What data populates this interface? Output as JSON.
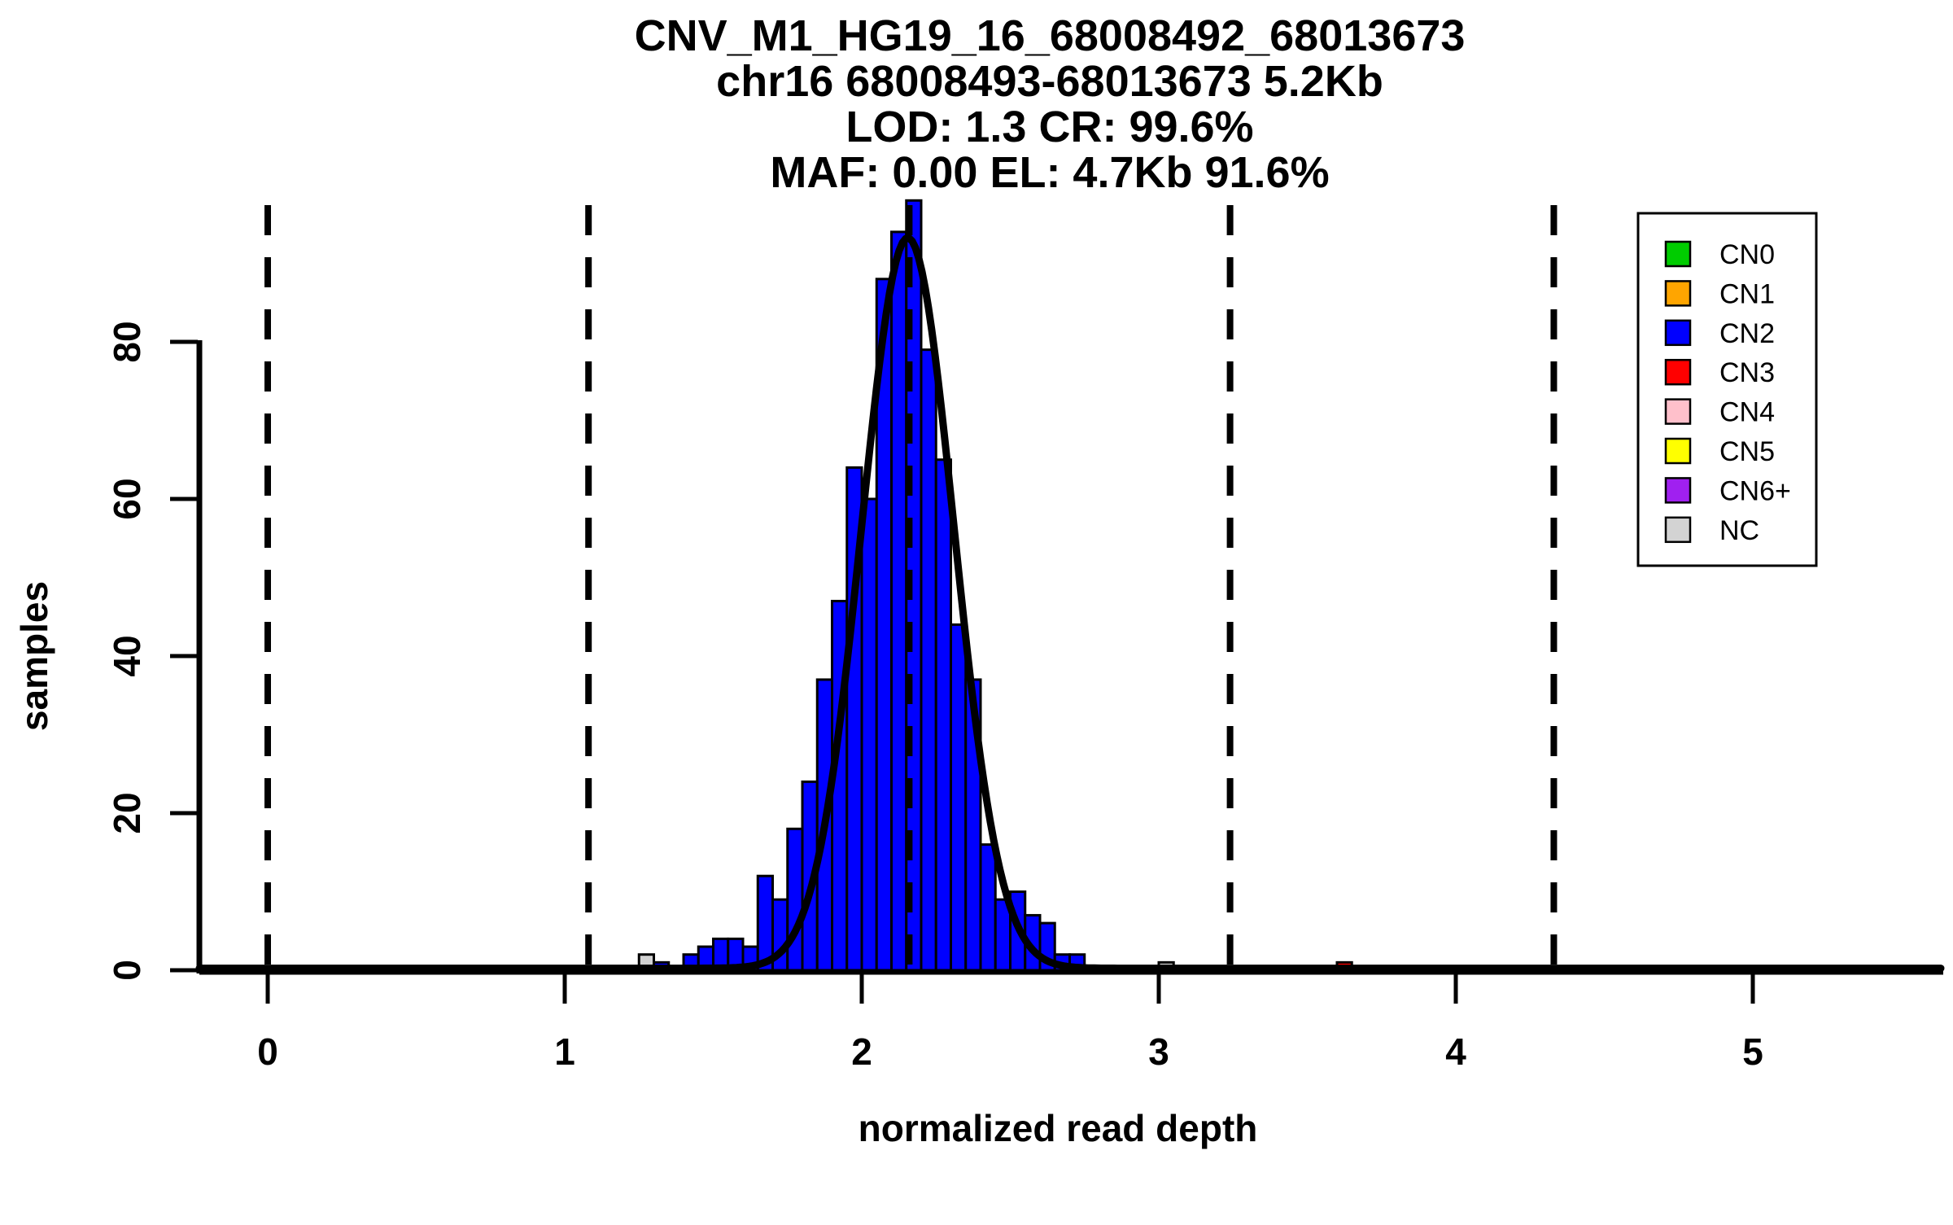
{
  "title": {
    "line1": "CNV_M1_HG19_16_68008492_68013673",
    "line2": "chr16 68008493-68013673 5.2Kb",
    "line3": "LOD: 1.3 CR: 99.6%",
    "line4": "MAF: 0.00 EL: 4.7Kb 91.6%"
  },
  "axes": {
    "x_label": "normalized read depth",
    "y_label": "samples",
    "x_tick_labels": [
      "0",
      "1",
      "2",
      "3",
      "4",
      "5"
    ],
    "x_tick_values": [
      0,
      1,
      2,
      3,
      4,
      5
    ],
    "y_tick_labels": [
      "0",
      "20",
      "40",
      "60",
      "80"
    ],
    "y_tick_values": [
      0,
      20,
      40,
      60,
      80
    ]
  },
  "legend": {
    "items": [
      {
        "label": "CN0",
        "color": "#00CC00"
      },
      {
        "label": "CN1",
        "color": "#FFA500"
      },
      {
        "label": "CN2",
        "color": "#0000FF"
      },
      {
        "label": "CN3",
        "color": "#FF0000"
      },
      {
        "label": "CN4",
        "color": "#FFC0CB"
      },
      {
        "label": "CN5",
        "color": "#FFFF00"
      },
      {
        "label": "CN6+",
        "color": "#A020F0"
      },
      {
        "label": "NC",
        "color": "#D3D3D3"
      }
    ]
  },
  "chart_data": {
    "type": "bar",
    "subtype": "histogram-with-density-fit",
    "title": "CNV_M1_HG19_16_68008492_68013673 / chr16 68008493-68013673 5.2Kb / LOD: 1.3 CR: 99.6% / MAF: 0.00 EL: 4.7Kb 91.6%",
    "xlabel": "normalized read depth",
    "ylabel": "samples",
    "xlim": [
      -0.23,
      5.64
    ],
    "ylim": [
      0,
      98.5
    ],
    "grid": false,
    "legend_position": "top-right",
    "bin_width": 0.05,
    "bars": [
      {
        "x": 1.25,
        "count": 2,
        "cn": "NC"
      },
      {
        "x": 1.3,
        "count": 1,
        "cn": "CN2"
      },
      {
        "x": 1.4,
        "count": 2,
        "cn": "CN2"
      },
      {
        "x": 1.45,
        "count": 3,
        "cn": "CN2"
      },
      {
        "x": 1.5,
        "count": 4,
        "cn": "CN2"
      },
      {
        "x": 1.55,
        "count": 4,
        "cn": "CN2"
      },
      {
        "x": 1.6,
        "count": 3,
        "cn": "CN2"
      },
      {
        "x": 1.65,
        "count": 12,
        "cn": "CN2"
      },
      {
        "x": 1.7,
        "count": 9,
        "cn": "CN2"
      },
      {
        "x": 1.75,
        "count": 18,
        "cn": "CN2"
      },
      {
        "x": 1.8,
        "count": 24,
        "cn": "CN2"
      },
      {
        "x": 1.85,
        "count": 37,
        "cn": "CN2"
      },
      {
        "x": 1.9,
        "count": 47,
        "cn": "CN2"
      },
      {
        "x": 1.95,
        "count": 64,
        "cn": "CN2"
      },
      {
        "x": 2.0,
        "count": 60,
        "cn": "CN2"
      },
      {
        "x": 2.05,
        "count": 88,
        "cn": "CN2"
      },
      {
        "x": 2.1,
        "count": 94,
        "cn": "CN2"
      },
      {
        "x": 2.15,
        "count": 98,
        "cn": "CN2"
      },
      {
        "x": 2.2,
        "count": 79,
        "cn": "CN2"
      },
      {
        "x": 2.25,
        "count": 65,
        "cn": "CN2"
      },
      {
        "x": 2.3,
        "count": 44,
        "cn": "CN2"
      },
      {
        "x": 2.35,
        "count": 37,
        "cn": "CN2"
      },
      {
        "x": 2.4,
        "count": 16,
        "cn": "CN2"
      },
      {
        "x": 2.45,
        "count": 9,
        "cn": "CN2"
      },
      {
        "x": 2.5,
        "count": 10,
        "cn": "CN2"
      },
      {
        "x": 2.55,
        "count": 7,
        "cn": "CN2"
      },
      {
        "x": 2.6,
        "count": 6,
        "cn": "CN2"
      },
      {
        "x": 2.65,
        "count": 2,
        "cn": "CN2"
      },
      {
        "x": 2.7,
        "count": 2,
        "cn": "CN2"
      },
      {
        "x": 3.0,
        "count": 1,
        "cn": "NC"
      },
      {
        "x": 3.6,
        "count": 1,
        "cn": "CN3"
      }
    ],
    "cn_boundary_lines": [
      0.0,
      1.08,
      2.16,
      3.24,
      4.33
    ],
    "fit_curve": {
      "shape": "gaussian",
      "mean": 2.155,
      "sd": 0.155,
      "peak": 93,
      "baseline": 0.25
    }
  }
}
